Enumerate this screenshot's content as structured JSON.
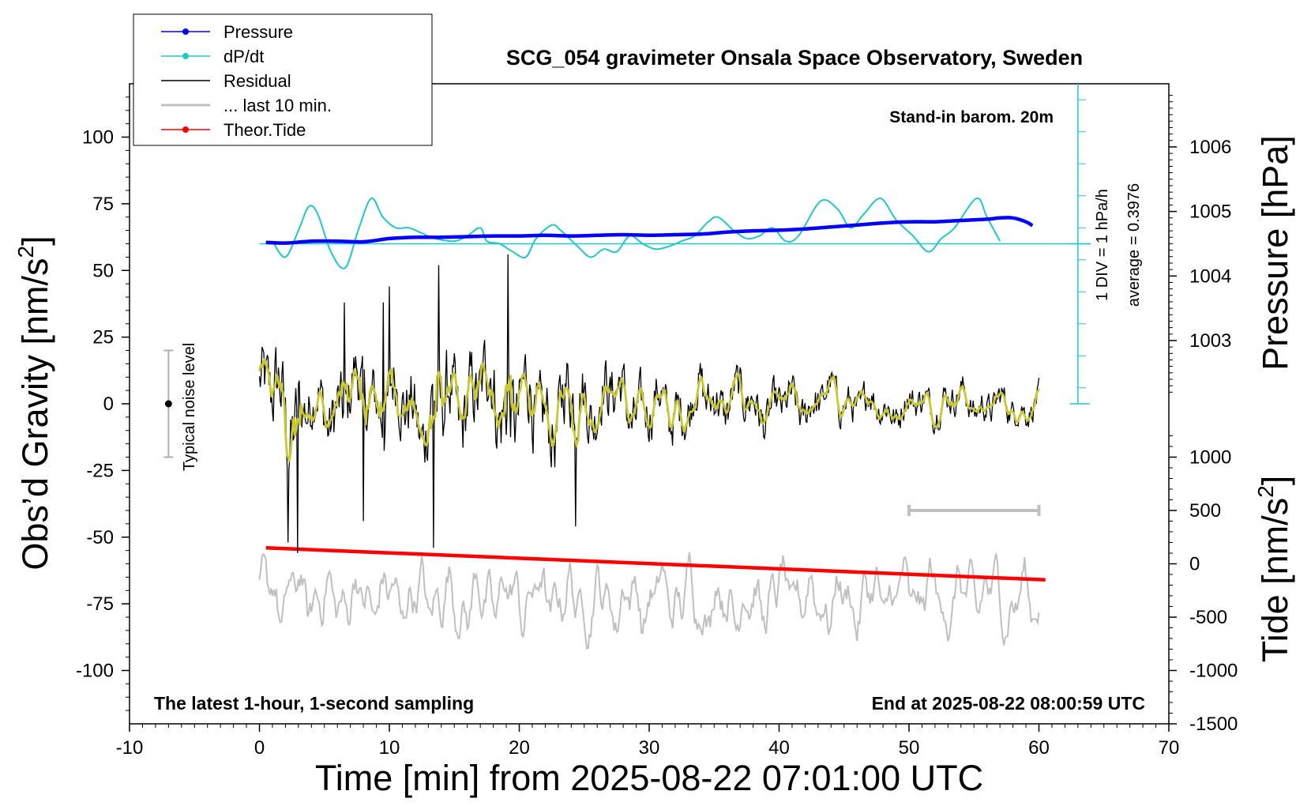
{
  "chart_data": {
    "type": "line",
    "title": "SCG_054 gravimeter Onsala Space Observatory, Sweden",
    "xlabel": "Time [min] from 2025-08-22 07:01:00 UTC",
    "ylabel": "Obs’d Gravity [nm/s²]",
    "ylabel_main": "Obs’d Gravity [nm/s",
    "ylabel_sup": "2",
    "ylabel_tail": "]",
    "xlim": [
      -10,
      70
    ],
    "ylim": [
      -120,
      120
    ],
    "x_ticks": [
      -10,
      0,
      10,
      20,
      30,
      40,
      50,
      60,
      70
    ],
    "x_tick_labels": [
      "-10",
      "0",
      "10",
      "20",
      "30",
      "40",
      "50",
      "60",
      "70"
    ],
    "y_ticks": [
      -100,
      -75,
      -50,
      -25,
      0,
      25,
      50,
      75,
      100
    ],
    "y_tick_labels": [
      "-100",
      "-75",
      "-50",
      "-25",
      "0",
      "25",
      "50",
      "75",
      "100"
    ],
    "pressure_axis": {
      "label": "Pressure [hPa]",
      "ticks": [
        1003,
        1004,
        1005,
        1006
      ],
      "tick_labels": [
        "1003",
        "1004",
        "1005",
        "1006"
      ],
      "ref_gravity_value": 0,
      "ref_pressure": 1002.02,
      "nm_per_hpa": 24.2
    },
    "tide_axis": {
      "label_main": "Tide [nm/s",
      "label_sup": "2",
      "label_tail": "]",
      "ticks": [
        -1500,
        -1000,
        -500,
        0,
        500,
        1000
      ],
      "tick_labels": [
        "-1500",
        "-1000",
        "-500",
        "0",
        "500",
        "1000"
      ],
      "g_at_zero": -60,
      "nm_per_unit": 0.04
    },
    "dpdt_axis": {
      "baseline_gravity": 60,
      "top_gravity": 120,
      "x": 63,
      "label_div": "1 DIV = 1 hPa/h",
      "label_avg": "average = 0.3976"
    },
    "legend": {
      "position": "top-left",
      "entries": [
        {
          "label": "Pressure",
          "color": "#0000ff",
          "marker": true
        },
        {
          "label": "dP/dt",
          "color": "#20c8c8",
          "marker": true
        },
        {
          "label": "Residual",
          "color": "#000000",
          "marker": false
        },
        {
          "label": "... last 10 min.",
          "color": "#c0c0c0",
          "marker": false
        },
        {
          "label": "Theor.Tide",
          "color": "#ff0000",
          "marker": true
        }
      ]
    },
    "annotations": {
      "standin": "Stand-in barom. 20m",
      "latest": "The latest 1-hour, 1-second sampling",
      "end": "End at 2025-08-22 08:00:59 UTC",
      "noise": "Typical noise level"
    },
    "noise_bar": {
      "x": -7,
      "center": 0,
      "half_range": 20
    },
    "ten_min_bar": {
      "x0": 50,
      "x1": 60,
      "y": -40
    },
    "series": [
      {
        "name": "Pressure",
        "color": "#0000ff",
        "x": [
          0.5,
          2,
          4,
          6,
          8,
          10,
          12,
          14,
          16,
          18,
          20,
          22,
          24,
          26,
          28,
          30,
          32,
          34,
          36,
          38,
          40,
          42,
          44,
          46,
          48,
          50,
          52,
          54,
          56,
          57,
          58,
          59,
          59.5
        ],
        "values": [
          1004.52,
          1004.51,
          1004.54,
          1004.54,
          1004.53,
          1004.58,
          1004.6,
          1004.6,
          1004.61,
          1004.62,
          1004.62,
          1004.63,
          1004.62,
          1004.63,
          1004.64,
          1004.63,
          1004.64,
          1004.65,
          1004.68,
          1004.7,
          1004.71,
          1004.73,
          1004.76,
          1004.79,
          1004.82,
          1004.84,
          1004.84,
          1004.86,
          1004.88,
          1004.9,
          1004.9,
          1004.84,
          1004.78
        ]
      },
      {
        "name": "dP/dt",
        "color": "#20c8c8",
        "x": [
          1,
          2,
          3,
          3.8,
          4.5,
          5.5,
          6.6,
          7.6,
          8.6,
          9.5,
          10.5,
          11.5,
          12.5,
          13.5,
          15,
          16,
          17,
          17.5,
          18.5,
          19.5,
          20.5,
          21.3,
          22.5,
          23.2,
          24.5,
          25.5,
          26.5,
          27.5,
          28.5,
          29.5,
          30.5,
          31.5,
          32.5,
          33.5,
          34.5,
          35.3,
          36.5,
          37.5,
          38.5,
          39.5,
          40.5,
          41.5,
          43.2,
          44.5,
          45.5,
          46.5,
          47.8,
          49,
          50.3,
          51.5,
          52.5,
          53.5,
          55.2,
          56,
          57
        ],
        "values": [
          61,
          55,
          65,
          74,
          71,
          57,
          51,
          65,
          77,
          70,
          66,
          66,
          64,
          62,
          61,
          63,
          66,
          61,
          60,
          57,
          55,
          62,
          67,
          65,
          59,
          55,
          58,
          57,
          63,
          60,
          58,
          59,
          61,
          63,
          68,
          70,
          65,
          62,
          63,
          66,
          61,
          63,
          76,
          73,
          66,
          71,
          77,
          69,
          63,
          57,
          62,
          66,
          77,
          70,
          61
        ]
      },
      {
        "name": "Residual",
        "color": "#000000",
        "x_range": [
          0,
          60
        ],
        "envelope": [
          [
            0,
            30
          ],
          [
            2,
            42
          ],
          [
            4,
            24
          ],
          [
            6,
            32
          ],
          [
            8,
            28
          ],
          [
            10,
            30
          ],
          [
            12,
            32
          ],
          [
            14,
            38
          ],
          [
            17,
            34
          ],
          [
            19,
            40
          ],
          [
            21,
            36
          ],
          [
            24,
            32
          ],
          [
            26,
            28
          ],
          [
            30,
            24
          ],
          [
            34,
            22
          ],
          [
            40,
            18
          ],
          [
            45,
            16
          ],
          [
            50,
            14
          ],
          [
            55,
            14
          ],
          [
            60,
            12
          ]
        ],
        "spikes": [
          [
            2.2,
            -52
          ],
          [
            13.4,
            -54
          ],
          [
            19.1,
            56
          ],
          [
            13.8,
            52
          ],
          [
            6.5,
            38
          ],
          [
            10,
            44
          ],
          [
            2.9,
            -56
          ],
          [
            24.3,
            -46
          ],
          [
            9.5,
            38
          ],
          [
            8,
            -44
          ]
        ]
      },
      {
        "name": "Residual (smoothed)",
        "color": "#c8c832",
        "x_range": [
          0,
          60
        ]
      },
      {
        "name": "... last 10 min.",
        "color": "#c0c0c0",
        "x_range": [
          0,
          60
        ],
        "baseline": -73,
        "amplitude": 10
      },
      {
        "name": "Theor.Tide",
        "color": "#ff0000",
        "x": [
          0.5,
          60.5
        ],
        "values": [
          150,
          -150
        ]
      }
    ]
  }
}
